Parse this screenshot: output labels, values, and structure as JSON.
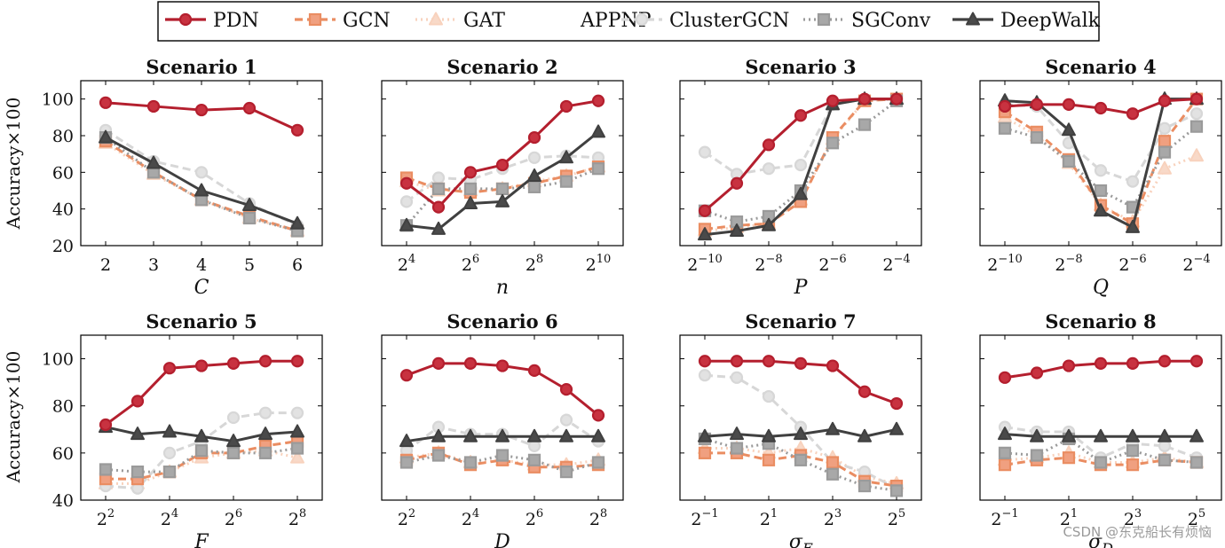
{
  "legend": {
    "entries": [
      {
        "name": "PDN",
        "color": "#b41f2e",
        "dash": "solid",
        "marker": "circle",
        "fill": "#c83240"
      },
      {
        "name": "GCN",
        "color": "#ea8d62",
        "dash": "dashed",
        "marker": "square",
        "fill": "#f0a080"
      },
      {
        "name": "GAT",
        "color": "#f8d2bd",
        "dash": "dotted",
        "marker": "triangle",
        "fill": "#f8d9c8"
      },
      {
        "name": "APPNP",
        "color": "#ffffff",
        "dash": "solid",
        "marker": "none",
        "fill": "#ffffff"
      },
      {
        "name": "ClusterGCN",
        "color": "#d7d7d7",
        "dash": "dashed",
        "marker": "circle",
        "fill": "#e2e2e2"
      },
      {
        "name": "SGConv",
        "color": "#9a9a9a",
        "dash": "dotted",
        "marker": "square",
        "fill": "#a8a8a8"
      },
      {
        "name": "DeepWalk",
        "color": "#404040",
        "dash": "solid",
        "marker": "triangle",
        "fill": "#4a4a4a"
      }
    ]
  },
  "ylabel": "Accuracy×100",
  "watermark": "CSDN @东克船长有烦恼",
  "chart_data": [
    {
      "type": "line",
      "title": "Scenario 1",
      "xlabel": "C",
      "xlabel_sub": "",
      "ylim": [
        20,
        110
      ],
      "yticks": [
        20,
        40,
        60,
        80,
        100
      ],
      "x": [
        2,
        3,
        4,
        5,
        6
      ],
      "xticks": [
        {
          "base": "2",
          "exp": ""
        },
        {
          "base": "3",
          "exp": ""
        },
        {
          "base": "4",
          "exp": ""
        },
        {
          "base": "5",
          "exp": ""
        },
        {
          "base": "6",
          "exp": ""
        }
      ],
      "series": [
        {
          "name": "PDN",
          "values": [
            98,
            96,
            94,
            95,
            83
          ]
        },
        {
          "name": "GCN",
          "values": [
            77,
            60,
            45,
            36,
            28
          ]
        },
        {
          "name": "GAT",
          "values": [
            76,
            59,
            45,
            35,
            28
          ]
        },
        {
          "name": "ClusterGCN",
          "values": [
            83,
            66,
            60,
            43,
            31
          ]
        },
        {
          "name": "SGConv",
          "values": [
            79,
            60,
            45,
            35,
            28
          ]
        },
        {
          "name": "DeepWalk",
          "values": [
            79,
            65,
            50,
            42,
            32
          ]
        }
      ]
    },
    {
      "type": "line",
      "title": "Scenario 2",
      "xlabel": "n",
      "xlabel_sub": "",
      "ylim": [
        20,
        110
      ],
      "yticks": [
        20,
        40,
        60,
        80,
        100
      ],
      "x": [
        4,
        5,
        6,
        7,
        8,
        9,
        10
      ],
      "xticks": [
        {
          "base": "2",
          "exp": "4"
        },
        {
          "base": "2",
          "exp": "6"
        },
        {
          "base": "2",
          "exp": "8"
        },
        {
          "base": "2",
          "exp": "10"
        }
      ],
      "xtick_positions": [
        4,
        6,
        8,
        10
      ],
      "series": [
        {
          "name": "PDN",
          "values": [
            54,
            41,
            60,
            64,
            79,
            96,
            99
          ]
        },
        {
          "name": "GCN",
          "values": [
            57,
            51,
            49,
            51,
            54,
            58,
            63
          ]
        },
        {
          "name": "GAT",
          "values": [
            55,
            50,
            50,
            51,
            55,
            58,
            63
          ]
        },
        {
          "name": "ClusterGCN",
          "values": [
            44,
            57,
            56,
            62,
            68,
            69,
            68
          ]
        },
        {
          "name": "SGConv",
          "values": [
            31,
            51,
            51,
            51,
            52,
            55,
            62
          ]
        },
        {
          "name": "DeepWalk",
          "values": [
            31,
            29,
            43,
            44,
            58,
            68,
            82
          ]
        }
      ]
    },
    {
      "type": "line",
      "title": "Scenario 3",
      "xlabel": "P",
      "xlabel_sub": "",
      "ylim": [
        20,
        110
      ],
      "yticks": [
        20,
        40,
        60,
        80,
        100
      ],
      "x": [
        -10,
        -9,
        -8,
        -7,
        -6,
        -5,
        -4
      ],
      "xticks": [
        {
          "base": "2",
          "exp": "−10"
        },
        {
          "base": "2",
          "exp": "−8"
        },
        {
          "base": "2",
          "exp": "−6"
        },
        {
          "base": "2",
          "exp": "−4"
        }
      ],
      "xtick_positions": [
        -10,
        -8,
        -6,
        -4
      ],
      "series": [
        {
          "name": "PDN",
          "values": [
            39,
            54,
            75,
            91,
            99,
            100,
            100
          ]
        },
        {
          "name": "GCN",
          "values": [
            29,
            31,
            32,
            44,
            79,
            99,
            100
          ]
        },
        {
          "name": "GAT",
          "values": [
            28,
            30,
            32,
            45,
            78,
            99,
            100
          ]
        },
        {
          "name": "ClusterGCN",
          "values": [
            71,
            59,
            62,
            64,
            97,
            100,
            100
          ]
        },
        {
          "name": "SGConv",
          "values": [
            39,
            33,
            36,
            50,
            76,
            86,
            99
          ]
        },
        {
          "name": "DeepWalk",
          "values": [
            26,
            28,
            31,
            48,
            97,
            100,
            100
          ]
        }
      ]
    },
    {
      "type": "line",
      "title": "Scenario 4",
      "xlabel": "Q",
      "xlabel_sub": "",
      "ylim": [
        20,
        110
      ],
      "yticks": [
        20,
        40,
        60,
        80,
        100
      ],
      "x": [
        -10,
        -9,
        -8,
        -7,
        -6,
        -5,
        -4
      ],
      "xticks": [
        {
          "base": "2",
          "exp": "−10"
        },
        {
          "base": "2",
          "exp": "−8"
        },
        {
          "base": "2",
          "exp": "−6"
        },
        {
          "base": "2",
          "exp": "−4"
        }
      ],
      "xtick_positions": [
        -10,
        -8,
        -6,
        -4
      ],
      "series": [
        {
          "name": "PDN",
          "values": [
            96,
            97,
            97,
            95,
            92,
            99,
            100
          ]
        },
        {
          "name": "GCN",
          "values": [
            93,
            82,
            67,
            42,
            32,
            77,
            100
          ]
        },
        {
          "name": "GAT",
          "values": [
            90,
            80,
            65,
            42,
            33,
            62,
            69
          ]
        },
        {
          "name": "ClusterGCN",
          "values": [
            97,
            96,
            76,
            61,
            55,
            84,
            92
          ]
        },
        {
          "name": "SGConv",
          "values": [
            84,
            79,
            66,
            50,
            41,
            71,
            85
          ]
        },
        {
          "name": "DeepWalk",
          "values": [
            99,
            98,
            83,
            39,
            30,
            100,
            100
          ]
        }
      ]
    },
    {
      "type": "line",
      "title": "Scenario 5",
      "xlabel": "F",
      "xlabel_sub": "",
      "ylim": [
        40,
        110
      ],
      "yticks": [
        40,
        60,
        80,
        100
      ],
      "x": [
        2,
        3,
        4,
        5,
        6,
        7,
        8
      ],
      "xticks": [
        {
          "base": "2",
          "exp": "2"
        },
        {
          "base": "2",
          "exp": "4"
        },
        {
          "base": "2",
          "exp": "6"
        },
        {
          "base": "2",
          "exp": "8"
        }
      ],
      "xtick_positions": [
        2,
        4,
        6,
        8
      ],
      "series": [
        {
          "name": "PDN",
          "values": [
            72,
            82,
            96,
            97,
            98,
            99,
            99
          ]
        },
        {
          "name": "GCN",
          "values": [
            49,
            49,
            52,
            60,
            60,
            63,
            65
          ]
        },
        {
          "name": "GAT",
          "values": [
            47,
            47,
            52,
            58,
            60,
            61,
            58
          ]
        },
        {
          "name": "ClusterGCN",
          "values": [
            46,
            45,
            60,
            65,
            75,
            77,
            77
          ]
        },
        {
          "name": "SGConv",
          "values": [
            53,
            52,
            52,
            61,
            60,
            60,
            62
          ]
        },
        {
          "name": "DeepWalk",
          "values": [
            71,
            68,
            69,
            67,
            65,
            68,
            69
          ]
        }
      ]
    },
    {
      "type": "line",
      "title": "Scenario 6",
      "xlabel": "D",
      "xlabel_sub": "",
      "ylim": [
        40,
        110
      ],
      "yticks": [
        40,
        60,
        80,
        100
      ],
      "x": [
        2,
        3,
        4,
        5,
        6,
        7,
        8
      ],
      "xticks": [
        {
          "base": "2",
          "exp": "2"
        },
        {
          "base": "2",
          "exp": "4"
        },
        {
          "base": "2",
          "exp": "6"
        },
        {
          "base": "2",
          "exp": "8"
        }
      ],
      "xtick_positions": [
        2,
        4,
        6,
        8
      ],
      "series": [
        {
          "name": "PDN",
          "values": [
            93,
            98,
            98,
            97,
            95,
            87,
            76
          ]
        },
        {
          "name": "GCN",
          "values": [
            57,
            60,
            55,
            57,
            54,
            54,
            55
          ]
        },
        {
          "name": "GAT",
          "values": [
            58,
            60,
            56,
            57,
            55,
            55,
            57
          ]
        },
        {
          "name": "ClusterGCN",
          "values": [
            61,
            71,
            68,
            68,
            63,
            74,
            65
          ]
        },
        {
          "name": "SGConv",
          "values": [
            56,
            59,
            56,
            59,
            57,
            52,
            56
          ]
        },
        {
          "name": "DeepWalk",
          "values": [
            65,
            67,
            67,
            67,
            67,
            67,
            67
          ]
        }
      ]
    },
    {
      "type": "line",
      "title": "Scenario 7",
      "xlabel": "σ",
      "xlabel_sub": "F",
      "ylim": [
        40,
        110
      ],
      "yticks": [
        40,
        60,
        80,
        100
      ],
      "x": [
        -1,
        0,
        1,
        2,
        3,
        4,
        5
      ],
      "xticks": [
        {
          "base": "2",
          "exp": "−1"
        },
        {
          "base": "2",
          "exp": "1"
        },
        {
          "base": "2",
          "exp": "3"
        },
        {
          "base": "2",
          "exp": "5"
        }
      ],
      "xtick_positions": [
        -1,
        1,
        3,
        5
      ],
      "series": [
        {
          "name": "PDN",
          "values": [
            99,
            99,
            99,
            98,
            97,
            86,
            81
          ]
        },
        {
          "name": "GCN",
          "values": [
            60,
            60,
            57,
            59,
            56,
            48,
            46
          ]
        },
        {
          "name": "GAT",
          "values": [
            62,
            62,
            60,
            62,
            58,
            50,
            47
          ]
        },
        {
          "name": "ClusterGCN",
          "values": [
            93,
            92,
            84,
            71,
            56,
            52,
            45
          ]
        },
        {
          "name": "SGConv",
          "values": [
            66,
            62,
            64,
            57,
            51,
            46,
            44
          ]
        },
        {
          "name": "DeepWalk",
          "values": [
            67,
            68,
            67,
            68,
            70,
            67,
            70
          ]
        }
      ]
    },
    {
      "type": "line",
      "title": "Scenario 8",
      "xlabel": "σ",
      "xlabel_sub": "D",
      "ylim": [
        40,
        110
      ],
      "yticks": [
        40,
        60,
        80,
        100
      ],
      "x": [
        -1,
        0,
        1,
        2,
        3,
        4,
        5
      ],
      "xticks": [
        {
          "base": "2",
          "exp": "−1"
        },
        {
          "base": "2",
          "exp": "1"
        },
        {
          "base": "2",
          "exp": "3"
        },
        {
          "base": "2",
          "exp": "5"
        }
      ],
      "xtick_positions": [
        -1,
        1,
        3,
        5
      ],
      "series": [
        {
          "name": "PDN",
          "values": [
            92,
            94,
            97,
            98,
            98,
            99,
            99
          ]
        },
        {
          "name": "GCN",
          "values": [
            55,
            57,
            58,
            55,
            55,
            57,
            56
          ]
        },
        {
          "name": "GAT",
          "values": [
            57,
            58,
            60,
            56,
            56,
            58,
            56
          ]
        },
        {
          "name": "ClusterGCN",
          "values": [
            71,
            69,
            69,
            58,
            64,
            63,
            58
          ]
        },
        {
          "name": "SGConv",
          "values": [
            60,
            59,
            66,
            56,
            61,
            57,
            56
          ]
        },
        {
          "name": "DeepWalk",
          "values": [
            68,
            67,
            67,
            67,
            67,
            67,
            67
          ]
        }
      ]
    }
  ]
}
